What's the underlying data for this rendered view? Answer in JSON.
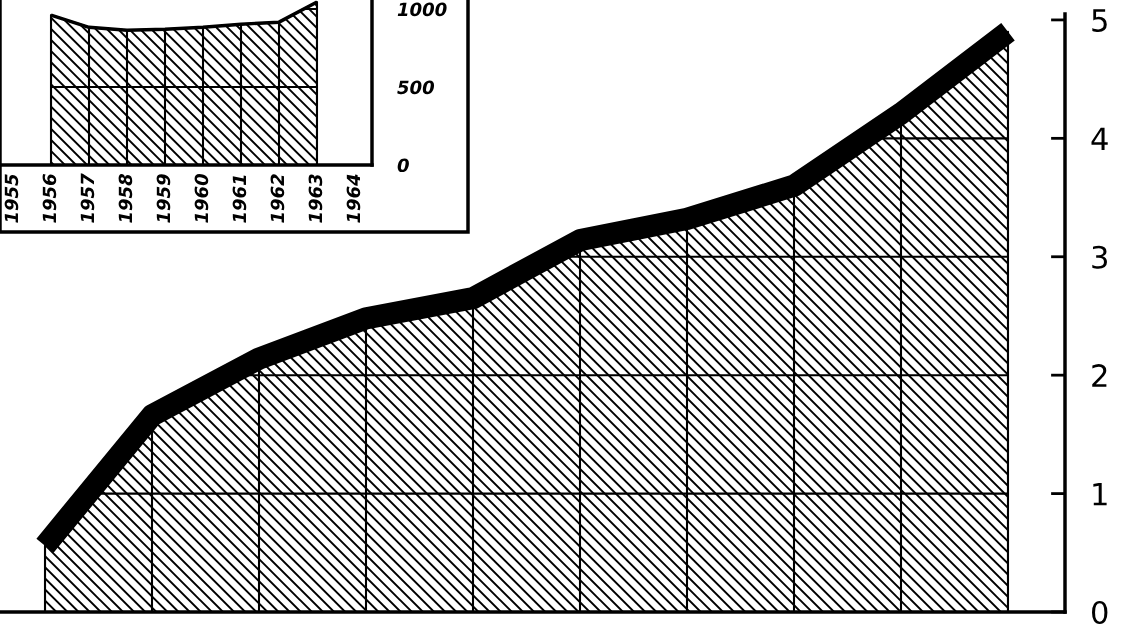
{
  "chart_data": [
    {
      "type": "area",
      "categories": [
        null,
        null,
        null,
        null,
        null,
        null,
        null,
        null,
        null,
        null
      ],
      "series": [
        {
          "color": "#000000",
          "values": [
            0.56,
            1.66,
            2.14,
            2.48,
            2.65,
            3.14,
            3.32,
            3.6,
            4.21,
            4.9
          ]
        }
      ],
      "ylim": [
        0,
        5.05
      ],
      "yticks": [
        0,
        1,
        2,
        3,
        4,
        5
      ],
      "grid": true,
      "tick_labels": "y"
    },
    {
      "type": "area",
      "categories": [
        "1955",
        "1956",
        "1957",
        "1958",
        "1959",
        "1960",
        "1961",
        "1962",
        "1963",
        "1964"
      ],
      "series": [
        {
          "color": "#000000",
          "values": [
            null,
            961,
            883,
            864,
            870,
            883,
            903,
            916,
            1045,
            null
          ]
        }
      ],
      "ylim": [
        0,
        1058
      ],
      "yticks": [
        0,
        500,
        1000
      ],
      "grid": true
    }
  ]
}
